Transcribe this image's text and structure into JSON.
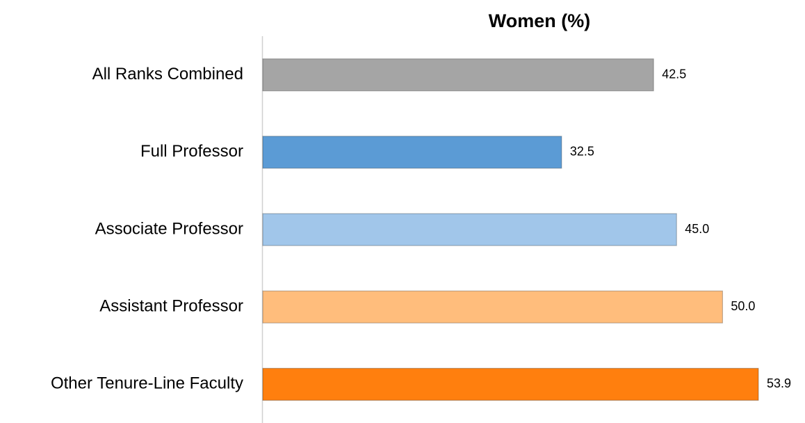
{
  "chart_data": {
    "type": "barh",
    "title": "Women (%)",
    "categories": [
      "All Ranks Combined",
      "Full Professor",
      "Associate Professor",
      "Assistant Professor",
      "Other Tenure-Line Faculty"
    ],
    "values": [
      42.5,
      32.5,
      45.0,
      50.0,
      53.9
    ],
    "value_labels": [
      "42.5",
      "32.5",
      "45.0",
      "50.0",
      "53.9"
    ],
    "colors": [
      "#a5a5a5",
      "#5b9bd5",
      "#a1c6ea",
      "#ffbd7c",
      "#ff7f0e"
    ]
  }
}
